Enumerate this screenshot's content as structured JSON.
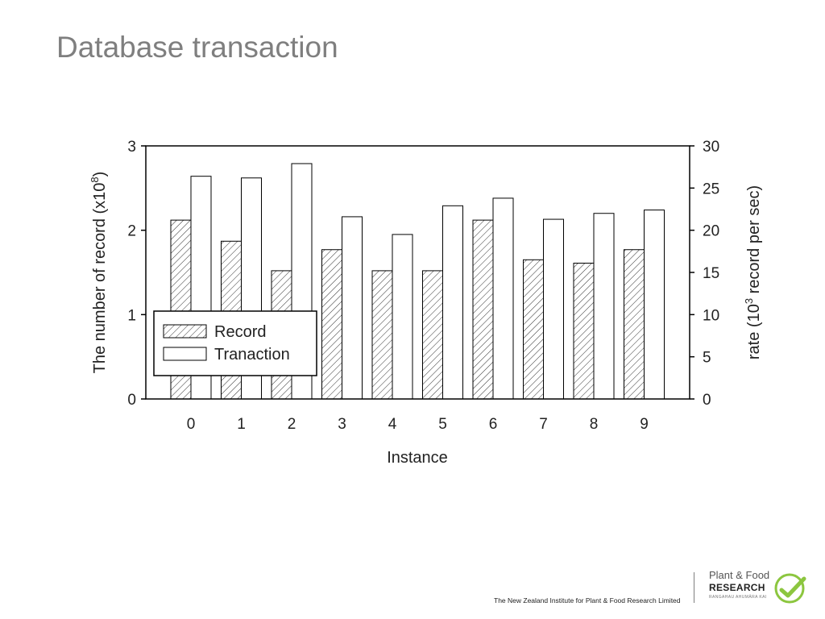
{
  "slide": {
    "title": "Database transaction",
    "footer": "The New Zealand Institute for Plant & Food Research Limited"
  },
  "logo": {
    "line1": "Plant & Food",
    "line2": "RESEARCH",
    "line3": "RANGAHAU AHUMĀRA KAI",
    "accent_color": "#8cc63f",
    "icon": "leaf-check-icon"
  },
  "chart_data": {
    "type": "bar",
    "xlabel": "Instance",
    "ylabel_left": "The number of record (x10",
    "ylabel_left_exp": "8",
    "ylabel_left_close": ")",
    "ylabel_right_prefix": "rate (10",
    "ylabel_right_exp": "3",
    "ylabel_right_suffix": " record per sec)",
    "categories": [
      "0",
      "1",
      "2",
      "3",
      "4",
      "5",
      "6",
      "7",
      "8",
      "9"
    ],
    "y_left_range": [
      0,
      3
    ],
    "y_left_ticks": [
      "0",
      "1",
      "2",
      "3"
    ],
    "y_right_range": [
      0,
      30
    ],
    "y_right_ticks": [
      "0",
      "5",
      "10",
      "15",
      "20",
      "25",
      "30"
    ],
    "legend_position": "lower-left",
    "grid": false,
    "series": [
      {
        "name": "Record",
        "axis": "left",
        "pattern": "hatched",
        "values": [
          2.12,
          1.87,
          1.52,
          1.77,
          1.52,
          1.52,
          2.12,
          1.65,
          1.61,
          1.77
        ]
      },
      {
        "name": "Tranaction",
        "axis": "right",
        "pattern": "white",
        "values": [
          26.4,
          26.2,
          27.9,
          21.6,
          19.5,
          22.9,
          23.8,
          21.3,
          22.0,
          22.4
        ]
      }
    ]
  }
}
